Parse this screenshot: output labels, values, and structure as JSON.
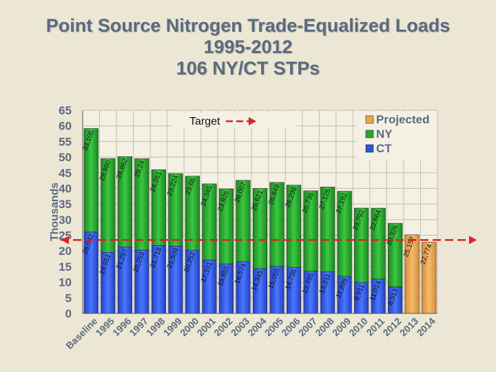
{
  "title_lines": [
    "Point Source Nitrogen Trade-Equalized Loads",
    "1995-2012",
    "106 NY/CT STPs"
  ],
  "chart_data": {
    "type": "bar",
    "stacked": true,
    "ylabel": "Thousands",
    "ylim": [
      0,
      65
    ],
    "yticks": [
      0,
      5,
      10,
      15,
      20,
      25,
      30,
      35,
      40,
      45,
      50,
      55,
      60,
      65
    ],
    "grid": true,
    "legend_position": "top-right",
    "categories": [
      "Baseline",
      "1995",
      "1996",
      "1997",
      "1998",
      "1999",
      "2000",
      "2001",
      "2002",
      "2003",
      "2004",
      "2005",
      "2006",
      "2007",
      "2008",
      "2009",
      "2010",
      "2011",
      "2012",
      "2013",
      "2014"
    ],
    "series": [
      {
        "name": "CT",
        "color": "#2a55e0",
        "values": [
          26.042,
          19.551,
          21.297,
          20.259,
          21.718,
          21.509,
          20.252,
          17.101,
          15.855,
          16.574,
          14.345,
          15.055,
          14.736,
          13.495,
          13.311,
          11.899,
          9.911,
          11.014,
          8.513,
          null,
          null
        ],
        "labels": [
          "26,042",
          "19,551",
          "21,297",
          "20,259",
          "21,718",
          "21,509",
          "20,252",
          "17,101",
          "15,855",
          "16,574",
          "14,345",
          "15,055",
          "14,736",
          "13,495",
          "13,311",
          "11,899",
          "9,911",
          "11,014",
          "8,513",
          "",
          ""
        ]
      },
      {
        "name": "NY",
        "color": "#22a82a",
        "values": [
          33.105,
          29.98,
          28.862,
          29.24,
          24.261,
          23.224,
          23.66,
          24.345,
          23.926,
          26.007,
          25.621,
          26.849,
          26.298,
          25.736,
          27.126,
          27.192,
          23.792,
          22.664,
          20.326,
          null,
          null
        ],
        "labels": [
          "33,105",
          "29,980",
          "28,862",
          "29,24",
          "24,261",
          "23,224",
          "23,66",
          "24,345",
          "23,926",
          "26,007",
          "25,621",
          "26,849",
          "26,298",
          "25,736",
          "27,126",
          "27,192",
          "23,792",
          "22,664",
          "20,326",
          "",
          ""
        ]
      },
      {
        "name": "Projected",
        "color": "#e8a54c",
        "values": [
          null,
          null,
          null,
          null,
          null,
          null,
          null,
          null,
          null,
          null,
          null,
          null,
          null,
          null,
          null,
          null,
          null,
          null,
          null,
          25.157,
          22.774
        ],
        "labels": [
          "",
          "",
          "",
          "",
          "",
          "",
          "",
          "",
          "",
          "",
          "",
          "",
          "",
          "",
          "",
          "",
          "",
          "",
          "",
          "25,157",
          "22,774"
        ]
      }
    ],
    "target": {
      "label": "Target",
      "value": 23.5,
      "color": "#e02020"
    }
  },
  "legend": [
    {
      "label": "Projected",
      "color": "#e8a54c"
    },
    {
      "label": "NY",
      "color": "#22a82a"
    },
    {
      "label": "CT",
      "color": "#2a55e0"
    }
  ]
}
